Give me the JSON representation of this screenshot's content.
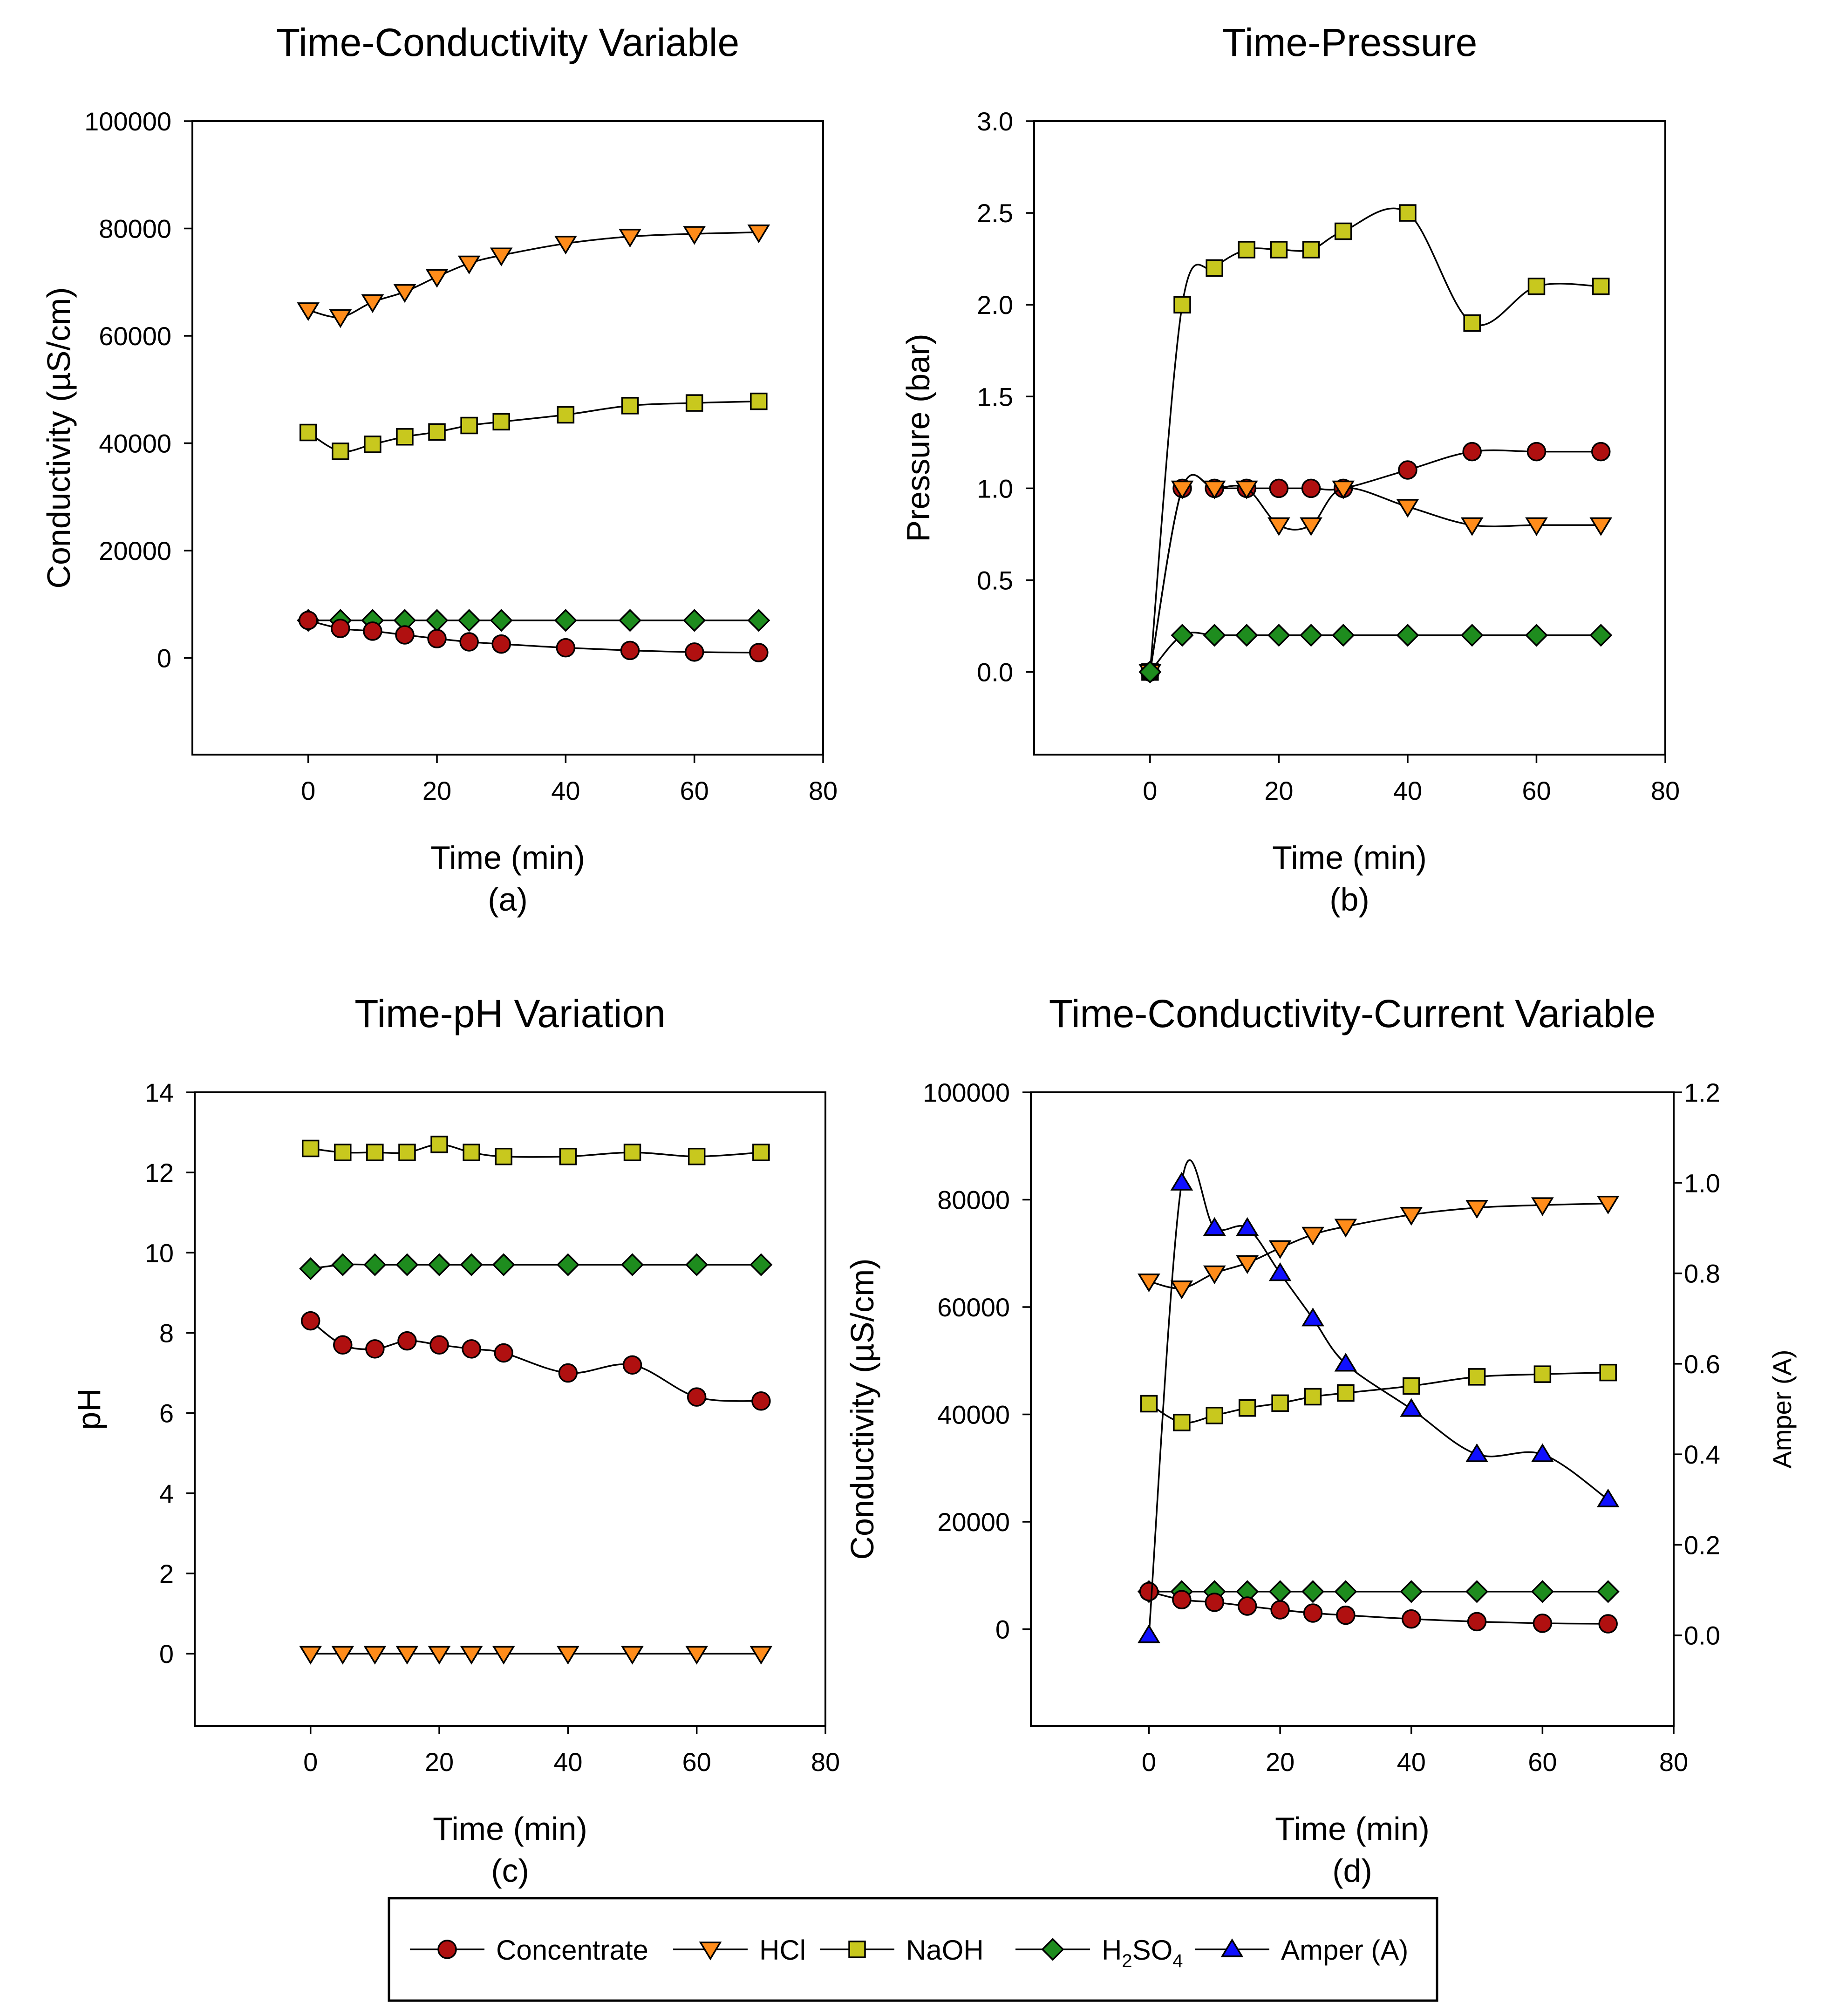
{
  "chart_data": [
    {
      "type": "line",
      "panel_label": "(a)",
      "title": "Time-Conductivity Variable",
      "xlabel": "Time (min)",
      "ylabel": "Conductivity (µS/cm)",
      "xlim": [
        -18,
        80
      ],
      "ylim": [
        -18000,
        100000
      ],
      "xticks": [
        0,
        20,
        40,
        60,
        80
      ],
      "yticks": [
        0,
        20000,
        40000,
        60000,
        80000,
        100000
      ],
      "x": [
        0,
        5,
        10,
        15,
        20,
        25,
        30,
        40,
        50,
        60,
        70
      ],
      "series": [
        {
          "name": "HCl",
          "key": "hcl",
          "values": [
            64800,
            63500,
            66300,
            68200,
            71000,
            73500,
            75000,
            77200,
            78500,
            79000,
            79300
          ]
        },
        {
          "name": "NaOH",
          "key": "naoh",
          "values": [
            42000,
            38500,
            39800,
            41200,
            42100,
            43300,
            44000,
            45300,
            47000,
            47500,
            47800
          ]
        },
        {
          "name": "H2SO4",
          "key": "h2so4",
          "values": [
            7000,
            7000,
            7000,
            7000,
            7000,
            7000,
            7000,
            7000,
            7000,
            7000,
            7000
          ]
        },
        {
          "name": "Concentrate",
          "key": "conc",
          "values": [
            7000,
            5500,
            5000,
            4300,
            3600,
            3000,
            2600,
            1900,
            1400,
            1100,
            1000
          ]
        }
      ]
    },
    {
      "type": "line",
      "panel_label": "(b)",
      "title": "Time-Pressure",
      "xlabel": "Time (min)",
      "ylabel": "Pressure (bar)",
      "xlim": [
        -18,
        80
      ],
      "ylim": [
        -0.45,
        3.0
      ],
      "xticks": [
        0,
        20,
        40,
        60,
        80
      ],
      "yticks": [
        0.0,
        0.5,
        1.0,
        1.5,
        2.0,
        2.5,
        3.0
      ],
      "y_tick_decimals": 1,
      "x": [
        0,
        5,
        10,
        15,
        20,
        25,
        30,
        40,
        50,
        60,
        70
      ],
      "series": [
        {
          "name": "NaOH",
          "key": "naoh",
          "values": [
            0,
            2.0,
            2.2,
            2.3,
            2.3,
            2.3,
            2.4,
            2.5,
            1.9,
            2.1,
            2.1
          ]
        },
        {
          "name": "Concentrate",
          "key": "conc",
          "values": [
            0,
            1.0,
            1.0,
            1.0,
            1.0,
            1.0,
            1.0,
            1.1,
            1.2,
            1.2,
            1.2
          ]
        },
        {
          "name": "HCl",
          "key": "hcl",
          "values": [
            0,
            1.0,
            1.0,
            1.0,
            0.8,
            0.8,
            1.0,
            0.9,
            0.8,
            0.8,
            0.8
          ]
        },
        {
          "name": "H2SO4",
          "key": "h2so4",
          "values": [
            0,
            0.2,
            0.2,
            0.2,
            0.2,
            0.2,
            0.2,
            0.2,
            0.2,
            0.2,
            0.2
          ]
        }
      ]
    },
    {
      "type": "line",
      "panel_label": "(c)",
      "title": "Time-pH Variation",
      "xlabel": "Time (min)",
      "ylabel": "pH",
      "xlim": [
        -18,
        80
      ],
      "ylim": [
        -1.8,
        14
      ],
      "xticks": [
        0,
        20,
        40,
        60,
        80
      ],
      "yticks": [
        0,
        2,
        4,
        6,
        8,
        10,
        12,
        14
      ],
      "x": [
        0,
        5,
        10,
        15,
        20,
        25,
        30,
        40,
        50,
        60,
        70
      ],
      "series": [
        {
          "name": "NaOH",
          "key": "naoh",
          "values": [
            12.6,
            12.5,
            12.5,
            12.5,
            12.7,
            12.5,
            12.4,
            12.4,
            12.5,
            12.4,
            12.5
          ]
        },
        {
          "name": "H2SO4",
          "key": "h2so4",
          "values": [
            9.6,
            9.7,
            9.7,
            9.7,
            9.7,
            9.7,
            9.7,
            9.7,
            9.7,
            9.7,
            9.7
          ]
        },
        {
          "name": "Concentrate",
          "key": "conc",
          "values": [
            8.3,
            7.7,
            7.6,
            7.8,
            7.7,
            7.6,
            7.5,
            7.0,
            7.2,
            6.4,
            6.3
          ]
        },
        {
          "name": "HCl",
          "key": "hcl",
          "values": [
            0,
            0,
            0,
            0,
            0,
            0,
            0,
            0,
            0,
            0,
            0
          ]
        }
      ]
    },
    {
      "type": "line",
      "panel_label": "(d)",
      "title": "Time-Conductivity-Current Variable",
      "xlabel": "Time (min)",
      "ylabel": "Conductivity (µS/cm)",
      "y2label": "Amper (A)",
      "xlim": [
        -18,
        80
      ],
      "ylim": [
        -18000,
        100000
      ],
      "y2lim": [
        -0.2,
        1.2
      ],
      "xticks": [
        0,
        20,
        40,
        60,
        80
      ],
      "yticks": [
        0,
        20000,
        40000,
        60000,
        80000,
        100000
      ],
      "y2ticks": [
        0.0,
        0.2,
        0.4,
        0.6,
        0.8,
        1.0,
        1.2
      ],
      "y2_tick_decimals": 1,
      "x": [
        0,
        5,
        10,
        15,
        20,
        25,
        30,
        40,
        50,
        60,
        70
      ],
      "series": [
        {
          "name": "HCl",
          "key": "hcl",
          "values": [
            64800,
            63500,
            66300,
            68200,
            71000,
            73500,
            75000,
            77200,
            78500,
            79000,
            79300
          ]
        },
        {
          "name": "NaOH",
          "key": "naoh",
          "values": [
            42000,
            38500,
            39800,
            41200,
            42100,
            43300,
            44000,
            45300,
            47000,
            47500,
            47800
          ]
        },
        {
          "name": "H2SO4",
          "key": "h2so4",
          "values": [
            7000,
            7000,
            7000,
            7000,
            7000,
            7000,
            7000,
            7000,
            7000,
            7000,
            7000
          ]
        },
        {
          "name": "Concentrate",
          "key": "conc",
          "values": [
            7000,
            5500,
            5000,
            4300,
            3600,
            3000,
            2600,
            1900,
            1400,
            1100,
            1000
          ]
        },
        {
          "name": "Amper (A)",
          "key": "amp",
          "axis": "right",
          "values": [
            0,
            1.0,
            0.9,
            0.9,
            0.8,
            0.7,
            0.6,
            0.5,
            0.4,
            0.4,
            0.3
          ]
        }
      ]
    }
  ],
  "legend": {
    "placement": "bottom",
    "items": [
      {
        "key": "conc",
        "label": "Concentrate"
      },
      {
        "key": "hcl",
        "label": "HCl"
      },
      {
        "key": "naoh",
        "label": "NaOH"
      },
      {
        "key": "h2so4",
        "label": "H",
        "sub1": "2",
        "mid": "SO",
        "sub2": "4"
      },
      {
        "key": "amp",
        "label": "Amper (A)"
      }
    ]
  },
  "styles": {
    "conc": {
      "marker": "circle",
      "color": "#b01010"
    },
    "hcl": {
      "marker": "triangle-down",
      "color": "#ff8c1a"
    },
    "naoh": {
      "marker": "square",
      "color": "#c8c81e"
    },
    "h2so4": {
      "marker": "diamond",
      "color": "#1e8c1e"
    },
    "amp": {
      "marker": "triangle-up",
      "color": "#1010ff"
    }
  }
}
